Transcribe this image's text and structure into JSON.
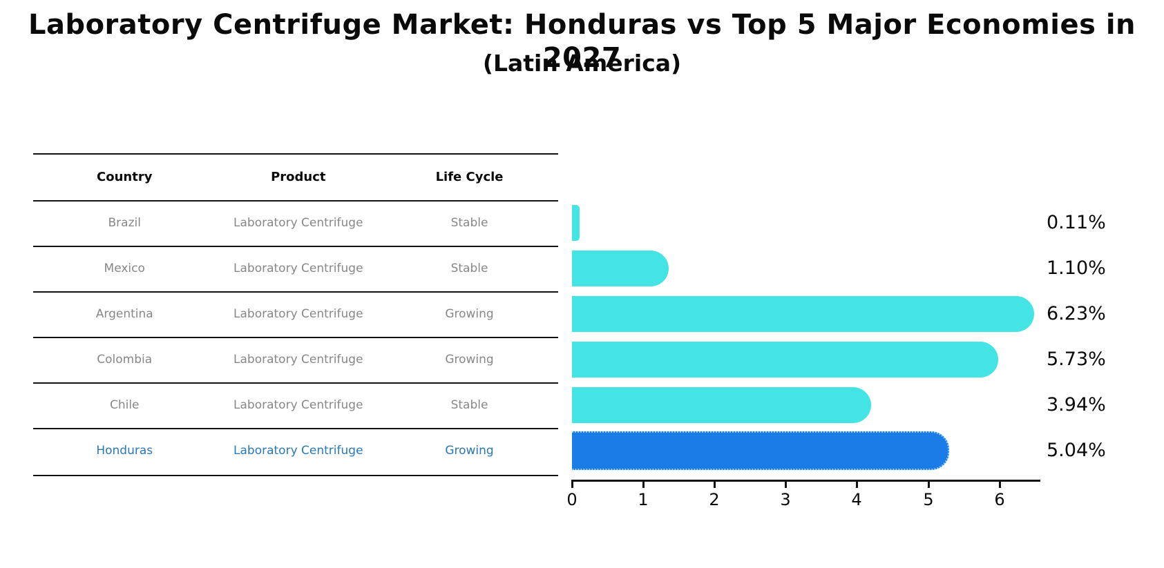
{
  "title": "Laboratory Centrifuge Market: Honduras vs Top 5 Major Economies in 2027",
  "subtitle": "(Latin America)",
  "table": {
    "headers": [
      "Country",
      "Product",
      "Life Cycle"
    ],
    "rows": [
      {
        "country": "Brazil",
        "product": "Laboratory Centrifuge",
        "life_cycle": "Stable",
        "share_label": "0.11%",
        "value": 0.11,
        "highlighted": false
      },
      {
        "country": "Mexico",
        "product": "Laboratory Centrifuge",
        "life_cycle": "Stable",
        "share_label": "1.10%",
        "value": 1.1,
        "highlighted": false
      },
      {
        "country": "Argentina",
        "product": "Laboratory Centrifuge",
        "life_cycle": "Growing",
        "share_label": "6.23%",
        "value": 6.23,
        "highlighted": false
      },
      {
        "country": "Colombia",
        "product": "Laboratory Centrifuge",
        "life_cycle": "Growing",
        "share_label": "5.73%",
        "value": 5.73,
        "highlighted": false
      },
      {
        "country": "Chile",
        "product": "Laboratory Centrifuge",
        "life_cycle": "Stable",
        "share_label": "3.94%",
        "value": 3.94,
        "highlighted": false
      },
      {
        "country": "Honduras",
        "product": "Laboratory Centrifuge",
        "life_cycle": "Growing",
        "share_label": "5.04%",
        "value": 5.04,
        "highlighted": true
      }
    ]
  },
  "chart_data": {
    "type": "bar",
    "orientation": "horizontal",
    "title": "Laboratory Centrifuge Market: Honduras vs Top 5 Major Economies in 2027",
    "subtitle": "(Latin America)",
    "categories": [
      "Brazil",
      "Mexico",
      "Argentina",
      "Colombia",
      "Chile",
      "Honduras"
    ],
    "values": [
      0.11,
      1.1,
      6.23,
      5.73,
      3.94,
      5.04
    ],
    "value_labels": [
      "0.11%",
      "1.10%",
      "6.23%",
      "5.73%",
      "3.94%",
      "5.04%"
    ],
    "unit": "%",
    "highlight_index": 5,
    "xticks": [
      "0",
      "1",
      "2",
      "3",
      "4",
      "5",
      "6"
    ],
    "xlim": [
      0,
      6.56
    ],
    "xlabel": "",
    "ylabel": "",
    "grid": false,
    "legend": false,
    "colors": {
      "bar": "#45E4E4",
      "highlight_bar": "#1B7CE8",
      "highlight_border": "#8ECDF2",
      "highlight_text": "#2878B9",
      "table_text": "#878787",
      "header_text": "#0A0A0A",
      "axis": "#111111"
    }
  }
}
